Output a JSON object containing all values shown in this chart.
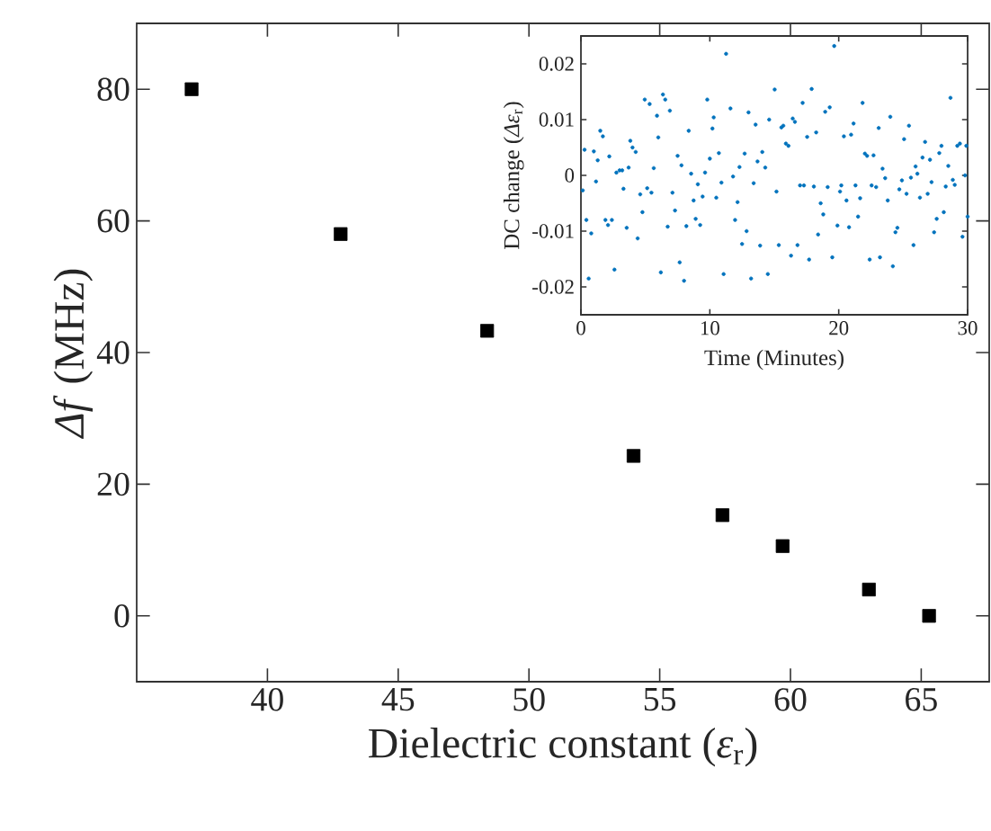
{
  "chart_data": [
    {
      "type": "scatter",
      "xlabel": "Dielectric constant (*ε*$_{r}$)",
      "ylabel": "*Δf* (MHz)",
      "xlim": [
        35,
        67.6
      ],
      "ylim": [
        -10,
        90
      ],
      "xticks": [
        40,
        45,
        50,
        55,
        60,
        65
      ],
      "yticks": [
        0,
        20,
        40,
        60,
        80
      ],
      "marker": "square",
      "color": "#000000",
      "x": [
        37.1,
        42.8,
        48.4,
        54.0,
        57.4,
        59.7,
        63.0,
        65.3
      ],
      "values": [
        80,
        58,
        43.3,
        24.3,
        15.3,
        10.6,
        4,
        0
      ]
    },
    {
      "type": "scatter",
      "xlabel": "Time (Minutes)",
      "ylabel": "DC change (*Δε*$_{r}$)",
      "xlim": [
        0,
        30
      ],
      "ylim": [
        -0.025,
        0.025
      ],
      "xticks": [
        0,
        10,
        20,
        30
      ],
      "yticks": [
        0.02,
        0.01,
        0,
        -0.01,
        -0.02
      ],
      "marker": "circle",
      "color": "#0072bd",
      "x": [
        0.14,
        0.28,
        0.42,
        0.6,
        0.8,
        1.0,
        1.17,
        1.3,
        1.5,
        1.7,
        1.9,
        2.1,
        2.2,
        2.4,
        2.6,
        2.75,
        3.0,
        3.2,
        3.3,
        3.55,
        3.7,
        3.83,
        4.0,
        4.25,
        4.4,
        4.6,
        4.77,
        4.95,
        5.14,
        5.33,
        5.47,
        5.65,
        5.9,
        6.0,
        6.2,
        6.36,
        6.54,
        6.73,
        6.9,
        7.1,
        7.3,
        7.5,
        7.66,
        7.8,
        8.0,
        8.18,
        8.36,
        8.55,
        8.74,
        8.9,
        9.07,
        9.25,
        9.44,
        9.63,
        9.8,
        10.0,
        10.2,
        10.3,
        10.5,
        10.7,
        10.9,
        11.07,
        11.26,
        11.6,
        11.8,
        11.96,
        12.15,
        12.3,
        12.5,
        12.7,
        12.85,
        13.0,
        13.2,
        13.4,
        13.55,
        13.7,
        13.9,
        14.07,
        14.3,
        14.5,
        14.6,
        15.03,
        15.17,
        15.35,
        15.55,
        15.7,
        15.9,
        16.1,
        16.3,
        16.43,
        16.6,
        16.8,
        17.0,
        17.2,
        17.3,
        17.55,
        17.7,
        17.9,
        18.07,
        18.25,
        18.4,
        18.6,
        18.8,
        18.95,
        19.14,
        19.3,
        19.5,
        19.65,
        19.9,
        20.1,
        20.2,
        20.4,
        20.6,
        20.8,
        20.96,
        21.15,
        21.3,
        21.5,
        21.66,
        21.85,
        22.03,
        22.2,
        22.4,
        22.55,
        22.7,
        22.9,
        23.1,
        23.2,
        23.4,
        23.6,
        23.8,
        24.0,
        24.2,
        24.4,
        24.55,
        24.7,
        24.9,
        25.07,
        25.26,
        25.45,
        25.6,
        25.8,
        25.96,
        26.1,
        26.3,
        26.5,
        26.7,
        26.9,
        27.08,
        27.2,
        27.4,
        27.6,
        27.8,
        27.97,
        28.15,
        28.3,
        28.5,
        28.67,
        28.85,
        29.0,
        29.2,
        29.4,
        29.6,
        29.8,
        29.9,
        30.0
      ],
      "values": [
        -0.0027,
        0.0046,
        -0.008,
        -0.0185,
        -0.0104,
        0.0043,
        -0.0011,
        0.0027,
        0.008,
        0.007,
        -0.008,
        -0.0089,
        0.0034,
        -0.008,
        -0.0169,
        0.0005,
        0.0009,
        0.0009,
        -0.0024,
        -0.0094,
        0.0014,
        0.0062,
        0.005,
        0.0042,
        -0.0113,
        -0.0034,
        -0.0066,
        0.0136,
        -0.0023,
        0.0128,
        -0.0031,
        0.0013,
        0.0107,
        0.0068,
        -0.0174,
        0.0145,
        0.0136,
        -0.0092,
        0.0116,
        -0.0031,
        -0.0063,
        0.0035,
        -0.0156,
        0.0018,
        -0.0189,
        -0.0091,
        0.008,
        0.0003,
        -0.0045,
        -0.0078,
        -0.0016,
        -0.0089,
        -0.0038,
        0.0005,
        0.0136,
        0.003,
        0.0084,
        0.0104,
        -0.004,
        0.004,
        -0.0013,
        -0.0177,
        0.0218,
        0.012,
        -0.0002,
        -0.008,
        -0.0048,
        0.0015,
        -0.0123,
        0.0039,
        -0.01,
        0.0113,
        -0.0185,
        -0.0014,
        0.0091,
        0.0025,
        -0.0126,
        0.0042,
        0.0014,
        -0.0177,
        0.01,
        0.0154,
        -0.0029,
        -0.0125,
        0.0086,
        0.0089,
        0.0057,
        0.0053,
        -0.0144,
        0.0102,
        0.0096,
        -0.0125,
        -0.0018,
        0.013,
        -0.0018,
        0.0069,
        -0.0151,
        0.0155,
        -0.002,
        0.0077,
        -0.0106,
        -0.005,
        -0.007,
        0.0114,
        -0.0021,
        0.0122,
        -0.0147,
        0.0232,
        -0.009,
        -0.0029,
        -0.0018,
        0.007,
        -0.0045,
        -0.0093,
        0.0073,
        0.0093,
        -0.0018,
        -0.0074,
        -0.0041,
        0.013,
        0.0039,
        0.0035,
        -0.0151,
        -0.0018,
        0.0036,
        -0.0021,
        0.0085,
        -0.0147,
        0.0012,
        -0.0005,
        -0.0045,
        0.0105,
        -0.0163,
        -0.0102,
        -0.0094,
        -0.0025,
        -0.0009,
        0.0065,
        -0.0033,
        0.0089,
        -0.0004,
        -0.0125,
        0.0016,
        0.0003,
        -0.004,
        0.0032,
        0.006,
        -0.0033,
        0.0028,
        -0.0012,
        -0.0102,
        -0.0078,
        0.004,
        0.0053,
        -0.0066,
        -0.002,
        0.0017,
        0.0139,
        -0.0008,
        -0.0017,
        0.0053,
        0.0057,
        -0.011,
        0,
        0.0053,
        -0.0074
      ]
    }
  ]
}
